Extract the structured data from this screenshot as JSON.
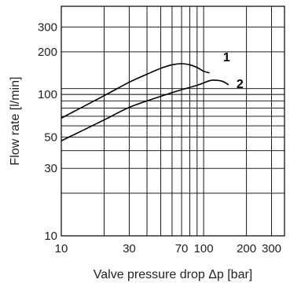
{
  "chart_data": {
    "type": "line",
    "title": "",
    "xlabel": "Valve pressure drop Δp [bar]",
    "ylabel": "Flow rate [l/min]",
    "x_scale": "log",
    "y_scale": "log",
    "xlim": [
      10,
      370
    ],
    "ylim": [
      10,
      420
    ],
    "grid": true,
    "x_gridlines": [
      10,
      20,
      30,
      40,
      50,
      60,
      70,
      80,
      90,
      100,
      200,
      300
    ],
    "y_gridlines": [
      10,
      20,
      30,
      40,
      50,
      60,
      70,
      80,
      90,
      100,
      110,
      200,
      300
    ],
    "x_ticks": [
      {
        "value": 10,
        "label": "10"
      },
      {
        "value": 30,
        "label": "30"
      },
      {
        "value": 70,
        "label": "70"
      },
      {
        "value": 100,
        "label": "100"
      },
      {
        "value": 200,
        "label": "200"
      },
      {
        "value": 300,
        "label": "300"
      }
    ],
    "y_ticks": [
      {
        "value": 10,
        "label": "10"
      },
      {
        "value": 30,
        "label": "30"
      },
      {
        "value": 50,
        "label": "50"
      },
      {
        "value": 100,
        "label": "100"
      },
      {
        "value": 200,
        "label": "200"
      },
      {
        "value": 300,
        "label": "300"
      }
    ],
    "series": [
      {
        "name": "1",
        "x": [
          10,
          20,
          30,
          40,
          50,
          60,
          70,
          80,
          90,
          100,
          110
        ],
        "y": [
          68,
          98,
          122,
          139,
          153,
          162,
          165,
          162,
          155,
          146,
          142
        ],
        "color": "#000000"
      },
      {
        "name": "2",
        "x": [
          10,
          20,
          30,
          50,
          70,
          90,
          110,
          120,
          135,
          150
        ],
        "y": [
          47,
          66,
          81,
          97,
          108,
          116,
          125,
          126,
          124,
          117
        ],
        "color": "#000000"
      }
    ],
    "series_labels": [
      {
        "text": "1",
        "x": 145,
        "y": 185
      },
      {
        "text": "2",
        "x": 180,
        "y": 120
      }
    ]
  }
}
